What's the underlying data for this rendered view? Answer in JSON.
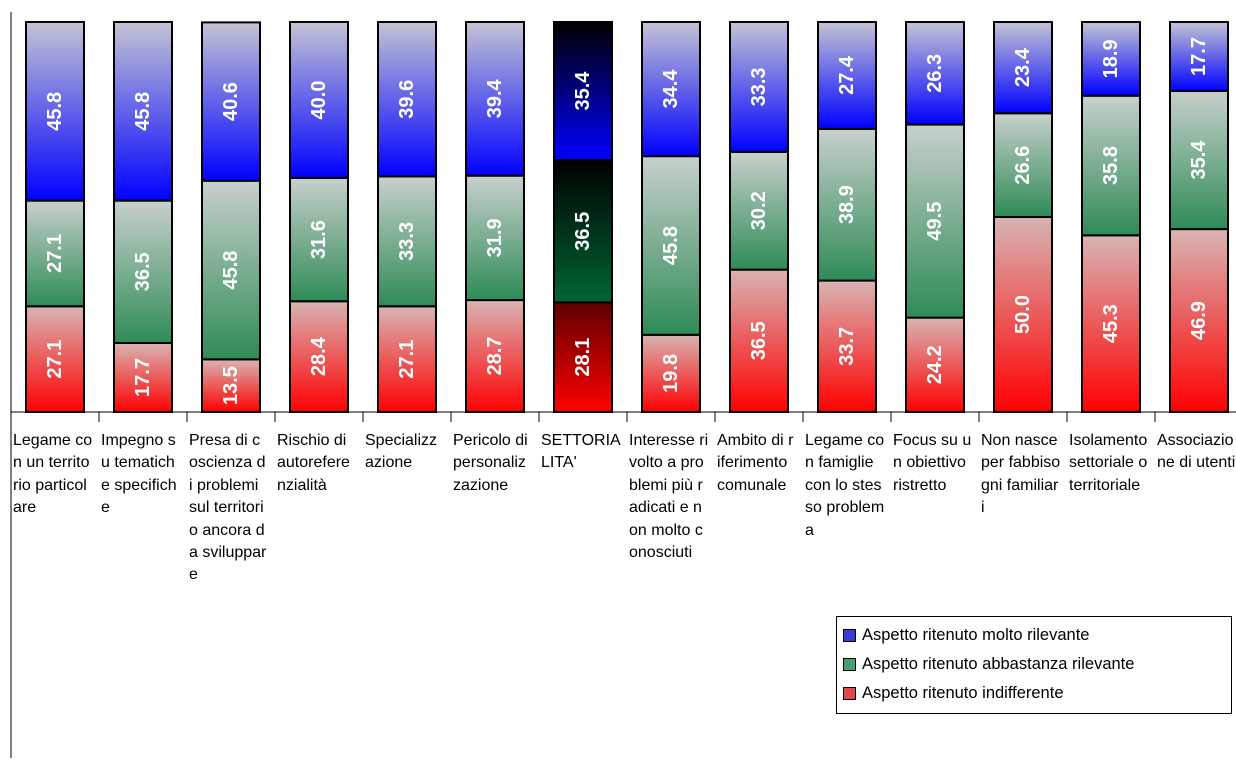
{
  "chart_data": {
    "type": "bar",
    "stacked": true,
    "orientation": "vertical",
    "categories": [
      "Legame con un territorio particolare",
      "Impegno su tematiche specifiche",
      "Presa di coscienza di problemi sul territorio ancora da sviluppare",
      "Rischio di autoreferenzialità",
      "Specializzazione",
      "Pericolo di personalizzazione",
      "SETTORIALITA'",
      "Interesse rivolto a problemi più radicati e non molto conosciuti",
      "Ambito di riferimento comunale",
      "Legame con famiglie con lo stesso problema",
      "Focus su un obiettivo ristretto",
      "Non nasce per fabbisogni familiari",
      "Isolamento settoriale o territoriale",
      "Associazione di utenti"
    ],
    "series": [
      {
        "name": "Aspetto ritenuto indifferente",
        "color": "#ff0000",
        "values": [
          27.1,
          17.7,
          13.5,
          28.4,
          27.1,
          28.7,
          28.1,
          19.8,
          36.5,
          33.7,
          24.2,
          50.0,
          45.3,
          46.9
        ]
      },
      {
        "name": "Aspetto ritenuto abbastanza rilevante",
        "color": "#2e8b57",
        "values": [
          27.1,
          36.5,
          45.8,
          31.6,
          33.3,
          31.9,
          36.5,
          45.8,
          30.2,
          38.9,
          49.5,
          26.6,
          35.8,
          35.4
        ]
      },
      {
        "name": "Aspetto ritenuto molto rilevante",
        "color": "#0000ff",
        "values": [
          45.8,
          45.8,
          40.6,
          40.0,
          39.6,
          39.4,
          35.4,
          34.4,
          33.3,
          27.4,
          26.3,
          23.4,
          18.9,
          17.7
        ]
      }
    ],
    "legend_order": [
      "Aspetto ritenuto molto rilevante",
      "Aspetto ritenuto abbastanza rilevante",
      "Aspetto ritenuto indifferente"
    ],
    "legend_position": "bottom-right",
    "highlighted_category": "SETTORIALITA'",
    "ylim": [
      0,
      100
    ],
    "grid": false
  }
}
